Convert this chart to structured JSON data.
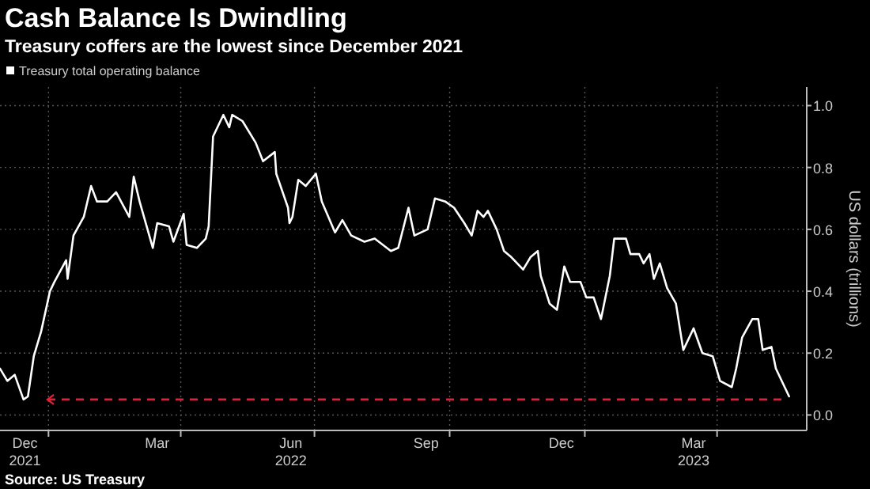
{
  "chart_data": {
    "type": "line",
    "title": "Cash Balance Is Dwindling",
    "subtitle": "Treasury coffers are the lowest since December 2021",
    "ylabel": "US dollars (trillions)",
    "annotations": [
      "Source: US Treasury"
    ],
    "x": [
      "2021-11-29",
      "2021-12-04",
      "2021-12-09",
      "2021-12-15",
      "2021-12-18",
      "2021-12-22",
      "2021-12-27",
      "2022-01-02",
      "2022-01-05",
      "2022-01-13",
      "2022-01-14",
      "2022-01-18",
      "2022-01-25",
      "2022-01-30",
      "2022-02-03",
      "2022-02-10",
      "2022-02-16",
      "2022-02-25",
      "2022-02-28",
      "2022-03-04",
      "2022-03-13",
      "2022-03-16",
      "2022-03-24",
      "2022-03-27",
      "2022-04-03",
      "2022-04-05",
      "2022-04-12",
      "2022-04-18",
      "2022-04-20",
      "2022-04-23",
      "2022-04-30",
      "2022-05-04",
      "2022-05-06",
      "2022-05-13",
      "2022-05-22",
      "2022-05-27",
      "2022-06-04",
      "2022-06-05",
      "2022-06-13",
      "2022-06-14",
      "2022-06-16",
      "2022-06-20",
      "2022-06-25",
      "2022-07-02",
      "2022-07-06",
      "2022-07-15",
      "2022-07-20",
      "2022-07-26",
      "2022-08-04",
      "2022-08-11",
      "2022-08-22",
      "2022-08-27",
      "2022-09-03",
      "2022-09-07",
      "2022-09-16",
      "2022-09-21",
      "2022-09-28",
      "2022-10-04",
      "2022-10-11",
      "2022-10-16",
      "2022-10-20",
      "2022-10-24",
      "2022-10-27",
      "2022-11-02",
      "2022-11-07",
      "2022-11-12",
      "2022-11-20",
      "2022-11-25",
      "2022-11-30",
      "2022-12-02",
      "2022-12-08",
      "2022-12-13",
      "2022-12-18",
      "2022-12-22",
      "2022-12-29",
      "2023-01-02",
      "2023-01-07",
      "2023-01-12",
      "2023-01-18",
      "2023-01-21",
      "2023-01-29",
      "2023-02-01",
      "2023-02-07",
      "2023-02-10",
      "2023-02-14",
      "2023-02-17",
      "2023-02-21",
      "2023-02-26",
      "2023-03-04",
      "2023-03-09",
      "2023-03-16",
      "2023-03-22",
      "2023-03-29",
      "2023-04-03",
      "2023-04-11",
      "2023-04-14",
      "2023-04-18",
      "2023-04-25",
      "2023-04-29",
      "2023-05-02",
      "2023-05-08",
      "2023-05-11",
      "2023-05-17",
      "2023-05-20"
    ],
    "series": [
      {
        "name": "Treasury total operating balance",
        "color": "#ffffff",
        "values": [
          0.15,
          0.11,
          0.13,
          0.05,
          0.06,
          0.19,
          0.27,
          0.4,
          0.43,
          0.5,
          0.44,
          0.58,
          0.64,
          0.74,
          0.69,
          0.69,
          0.72,
          0.64,
          0.77,
          0.69,
          0.54,
          0.62,
          0.61,
          0.56,
          0.65,
          0.55,
          0.54,
          0.57,
          0.61,
          0.9,
          0.97,
          0.93,
          0.97,
          0.95,
          0.88,
          0.82,
          0.85,
          0.78,
          0.67,
          0.62,
          0.64,
          0.76,
          0.74,
          0.78,
          0.69,
          0.59,
          0.63,
          0.58,
          0.56,
          0.57,
          0.53,
          0.54,
          0.67,
          0.58,
          0.6,
          0.7,
          0.69,
          0.67,
          0.62,
          0.58,
          0.66,
          0.64,
          0.66,
          0.6,
          0.53,
          0.51,
          0.47,
          0.51,
          0.53,
          0.45,
          0.36,
          0.34,
          0.48,
          0.43,
          0.43,
          0.38,
          0.38,
          0.31,
          0.45,
          0.57,
          0.57,
          0.52,
          0.52,
          0.49,
          0.52,
          0.44,
          0.49,
          0.41,
          0.36,
          0.21,
          0.28,
          0.2,
          0.19,
          0.11,
          0.09,
          0.15,
          0.25,
          0.31,
          0.31,
          0.21,
          0.22,
          0.15,
          0.09,
          0.06
        ]
      }
    ],
    "xlim": [
      "2021-11-29",
      "2023-06-01"
    ],
    "xticks": [
      {
        "value": "2021-12-16",
        "label": "Dec\n2021"
      },
      {
        "value": "2022-01-01",
        "label": null
      },
      {
        "value": "2022-03-16",
        "label": "Mar"
      },
      {
        "value": "2022-04-01",
        "label": null
      },
      {
        "value": "2022-06-15",
        "label": "Jun\n2022"
      },
      {
        "value": "2022-07-01",
        "label": null
      },
      {
        "value": "2022-09-15",
        "label": "Sep"
      },
      {
        "value": "2022-10-01",
        "label": null
      },
      {
        "value": "2022-12-16",
        "label": "Dec"
      },
      {
        "value": "2023-01-01",
        "label": null
      },
      {
        "value": "2023-03-16",
        "label": "Mar\n2023"
      },
      {
        "value": "2023-04-01",
        "label": null
      }
    ],
    "ylim": [
      -0.05,
      1.06
    ],
    "yticks": [
      {
        "value": 0,
        "label": "0.0"
      },
      0.2,
      0.4,
      0.6,
      0.8,
      {
        "value": 1,
        "label": "1.0"
      }
    ],
    "ref_lines": [
      {
        "axis": "y",
        "value": 0.05,
        "color": "#e0203a",
        "line_style": "dashed"
      }
    ],
    "grid": true,
    "legend": "top left",
    "marker": "none",
    "line_style": "solid"
  }
}
